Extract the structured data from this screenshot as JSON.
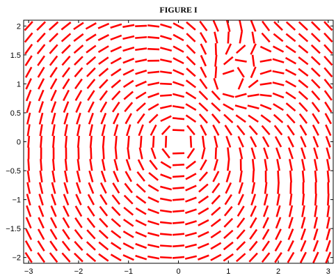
{
  "chart_data": {
    "type": "direction-field",
    "title": "FIGURE I",
    "xlabel": "",
    "ylabel": "",
    "xlim": [
      -3.1,
      3.1
    ],
    "ylim": [
      -2.1,
      2.1
    ],
    "x_ticks": [
      -3,
      -2,
      -1,
      0,
      1,
      2,
      3
    ],
    "x_tick_labels": [
      "−3",
      "−2",
      "−1",
      "0",
      "1",
      "2",
      "3"
    ],
    "y_ticks": [
      -2,
      -1.5,
      -1,
      -0.5,
      0,
      0.5,
      1,
      1.5,
      2
    ],
    "y_tick_labels": [
      "−2",
      "−1.5",
      "−1",
      "−0.5",
      "0",
      "0.5",
      "1",
      "1.5",
      "2"
    ],
    "grid": false,
    "line_style": "dashed",
    "colors": {
      "field_lines": "#ff0000",
      "axes": "#000000",
      "background": "#ffffff"
    },
    "singular_points": [
      {
        "x": 0,
        "y": 0
      },
      {
        "x": 1,
        "y": 1
      }
    ],
    "field_sample_x": [
      -3,
      -2.75,
      -2.5,
      -2.25,
      -2,
      -1.75,
      -1.5,
      -1.25,
      -1,
      -0.75,
      -0.5,
      -0.25,
      0,
      0.25,
      0.5,
      0.75,
      1,
      1.25,
      1.5,
      1.75,
      2,
      2.25,
      2.5,
      2.75,
      3
    ],
    "field_sample_y": [
      -2,
      -1.8,
      -1.6,
      -1.4,
      -1.2,
      -1,
      -0.8,
      -0.6,
      -0.4,
      -0.2,
      0,
      0.2,
      0.4,
      0.6,
      0.8,
      1,
      1.2,
      1.4,
      1.6,
      1.8,
      2
    ]
  }
}
